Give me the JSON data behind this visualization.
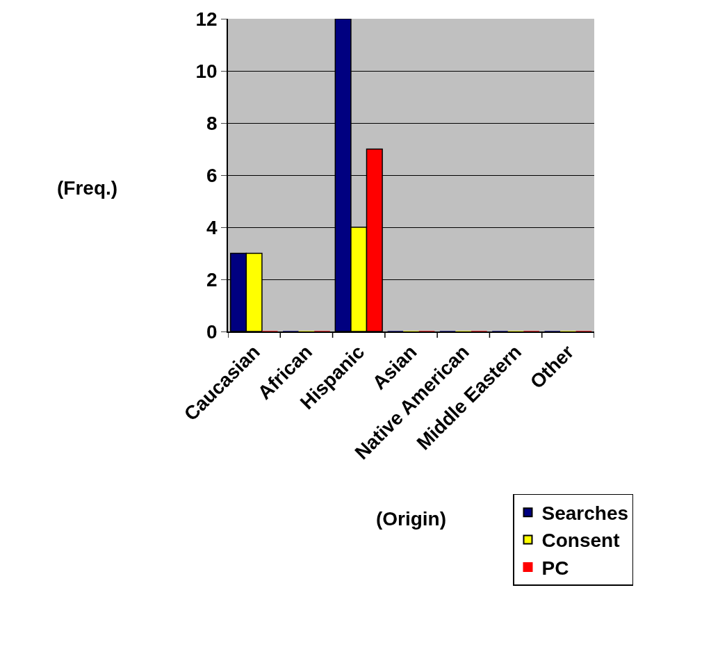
{
  "chart_data": {
    "type": "bar",
    "xlabel": "(Origin)",
    "ylabel": "(Freq.)",
    "categories": [
      "Caucasian",
      "African",
      "Hispanic",
      "Asian",
      "Native American",
      "Middle Eastern",
      "Other"
    ],
    "series": [
      {
        "name": "Searches",
        "color": "#000080",
        "values": [
          3,
          0,
          12,
          0,
          0,
          0,
          0
        ]
      },
      {
        "name": "Consent",
        "color": "#ffff00",
        "values": [
          3,
          0,
          4,
          0,
          0,
          0,
          0
        ]
      },
      {
        "name": "PC",
        "color": "#ff0000",
        "values": [
          0,
          0,
          7,
          0,
          0,
          0,
          0
        ]
      }
    ],
    "ylim": [
      0,
      12
    ],
    "yticks": [
      0,
      2,
      4,
      6,
      8,
      10,
      12
    ],
    "grid": "y",
    "legend": "bottom right"
  }
}
